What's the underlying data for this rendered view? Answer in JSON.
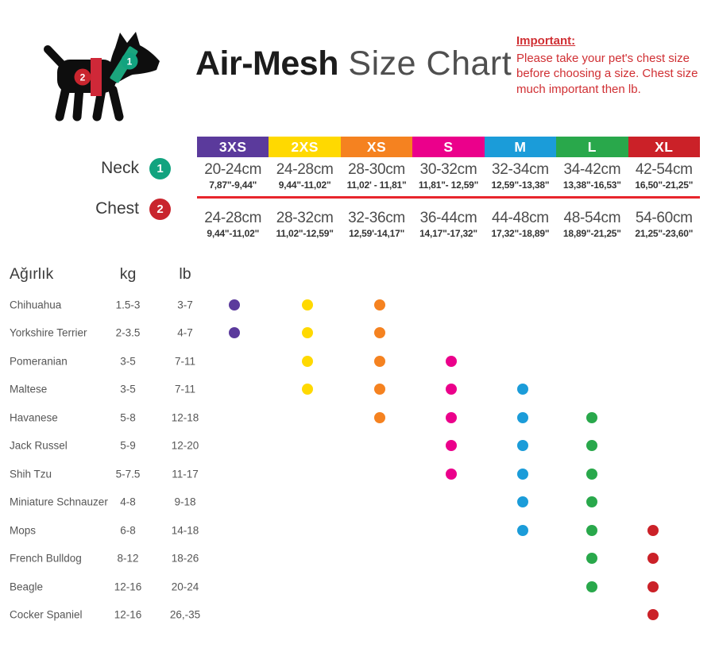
{
  "header": {
    "title_bold": "Air-Mesh",
    "title_light": " Size Chart",
    "important_label": "Important:",
    "important_text": "Please take your pet's chest size before choosing a size. Chest size much important then lb."
  },
  "dog": {
    "neck_badge": "1",
    "chest_badge": "2",
    "neck_band_color": "#1ba57d",
    "chest_band_color": "#cf2838",
    "neck_badge_color": "#12a37f",
    "chest_badge_color": "#c9252e",
    "silhouette_color": "#0e0e0e"
  },
  "size_table": {
    "neck_label": "Neck",
    "chest_label": "Chest",
    "divider_color": "#e8252c",
    "sizes": [
      {
        "label": "3XS",
        "color": "#5b3a9c",
        "neck_cm": "20-24cm",
        "neck_in": "7,87\"-9,44\"",
        "chest_cm": "24-28cm",
        "chest_in": "9,44\"-11,02\""
      },
      {
        "label": "2XS",
        "color": "#ffd900",
        "neck_cm": "24-28cm",
        "neck_in": "9,44\"-11,02\"",
        "chest_cm": "28-32cm",
        "chest_in": "11,02\"-12,59\""
      },
      {
        "label": "XS",
        "color": "#f58220",
        "neck_cm": "28-30cm",
        "neck_in": "11,02' - 11,81\"",
        "chest_cm": "32-36cm",
        "chest_in": "12,59'-14,17\""
      },
      {
        "label": "S",
        "color": "#eb008b",
        "neck_cm": "30-32cm",
        "neck_in": "11,81\"- 12,59\"",
        "chest_cm": "36-44cm",
        "chest_in": "14,17\"-17,32\""
      },
      {
        "label": "M",
        "color": "#1b9cd9",
        "neck_cm": "32-34cm",
        "neck_in": "12,59\"-13,38\"",
        "chest_cm": "44-48cm",
        "chest_in": "17,32\"-18,89\""
      },
      {
        "label": "L",
        "color": "#29a84b",
        "neck_cm": "34-42cm",
        "neck_in": "13,38\"-16,53\"",
        "chest_cm": "48-54cm",
        "chest_in": "18,89\"-21,25\""
      },
      {
        "label": "XL",
        "color": "#cb2128",
        "neck_cm": "42-54cm",
        "neck_in": "16,50\"-21,25\"",
        "chest_cm": "54-60cm",
        "chest_in": "21,25\"-23,60\""
      }
    ]
  },
  "breed_table": {
    "weight_header": "Ağırlık",
    "kg_header": "kg",
    "lb_header": "lb",
    "rows": [
      {
        "breed": "Chihuahua",
        "kg": "1.5-3",
        "lb": "3-7",
        "sizes": [
          "3XS",
          "2XS",
          "XS"
        ]
      },
      {
        "breed": "Yorkshire Terrier",
        "kg": "2-3.5",
        "lb": "4-7",
        "sizes": [
          "3XS",
          "2XS",
          "XS"
        ]
      },
      {
        "breed": "Pomeranian",
        "kg": "3-5",
        "lb": "7-11",
        "sizes": [
          "2XS",
          "XS",
          "S"
        ]
      },
      {
        "breed": "Maltese",
        "kg": "3-5",
        "lb": "7-11",
        "sizes": [
          "2XS",
          "XS",
          "S",
          "M"
        ]
      },
      {
        "breed": "Havanese",
        "kg": "5-8",
        "lb": "12-18",
        "sizes": [
          "XS",
          "S",
          "M",
          "L"
        ]
      },
      {
        "breed": "Jack Russel",
        "kg": "5-9",
        "lb": "12-20",
        "sizes": [
          "S",
          "M",
          "L"
        ]
      },
      {
        "breed": "Shih Tzu",
        "kg": "5-7.5",
        "lb": "11-17",
        "sizes": [
          "S",
          "M",
          "L"
        ]
      },
      {
        "breed": "Miniature Schnauzer",
        "kg": "4-8",
        "lb": "9-18",
        "sizes": [
          "M",
          "L"
        ]
      },
      {
        "breed": "Mops",
        "kg": "6-8",
        "lb": "14-18",
        "sizes": [
          "M",
          "L",
          "XL"
        ]
      },
      {
        "breed": "French Bulldog",
        "kg": "8-12",
        "lb": "18-26",
        "sizes": [
          "L",
          "XL"
        ]
      },
      {
        "breed": "Beagle",
        "kg": "12-16",
        "lb": "20-24",
        "sizes": [
          "L",
          "XL"
        ]
      },
      {
        "breed": "Cocker Spaniel",
        "kg": "12-16",
        "lb": "26,-35",
        "sizes": [
          "XL"
        ]
      }
    ]
  },
  "chart_data": {
    "type": "table",
    "title": "Air-Mesh Size Chart",
    "columns": [
      "3XS",
      "2XS",
      "XS",
      "S",
      "M",
      "L",
      "XL"
    ],
    "column_colors": [
      "#5b3a9c",
      "#ffd900",
      "#f58220",
      "#eb008b",
      "#1b9cd9",
      "#29a84b",
      "#cb2128"
    ],
    "neck_cm": [
      "20-24",
      "24-28",
      "28-30",
      "30-32",
      "32-34",
      "34-42",
      "42-54"
    ],
    "neck_inches": [
      "7,87-9,44",
      "9,44-11,02",
      "11,02-11,81",
      "11,81-12,59",
      "12,59-13,38",
      "13,38-16,53",
      "16,50-21,25"
    ],
    "chest_cm": [
      "24-28",
      "28-32",
      "32-36",
      "36-44",
      "44-48",
      "48-54",
      "54-60"
    ],
    "chest_inches": [
      "9,44-11,02",
      "11,02-12,59",
      "12,59-14,17",
      "14,17-17,32",
      "17,32-18,89",
      "18,89-21,25",
      "21,25-23,60"
    ],
    "breed_fit_matrix": {
      "Chihuahua": [
        "3XS",
        "2XS",
        "XS"
      ],
      "Yorkshire Terrier": [
        "3XS",
        "2XS",
        "XS"
      ],
      "Pomeranian": [
        "2XS",
        "XS",
        "S"
      ],
      "Maltese": [
        "2XS",
        "XS",
        "S",
        "M"
      ],
      "Havanese": [
        "XS",
        "S",
        "M",
        "L"
      ],
      "Jack Russel": [
        "S",
        "M",
        "L"
      ],
      "Shih Tzu": [
        "S",
        "M",
        "L"
      ],
      "Miniature Schnauzer": [
        "M",
        "L"
      ],
      "Mops": [
        "M",
        "L",
        "XL"
      ],
      "French Bulldog": [
        "L",
        "XL"
      ],
      "Beagle": [
        "L",
        "XL"
      ],
      "Cocker Spaniel": [
        "XL"
      ]
    }
  }
}
